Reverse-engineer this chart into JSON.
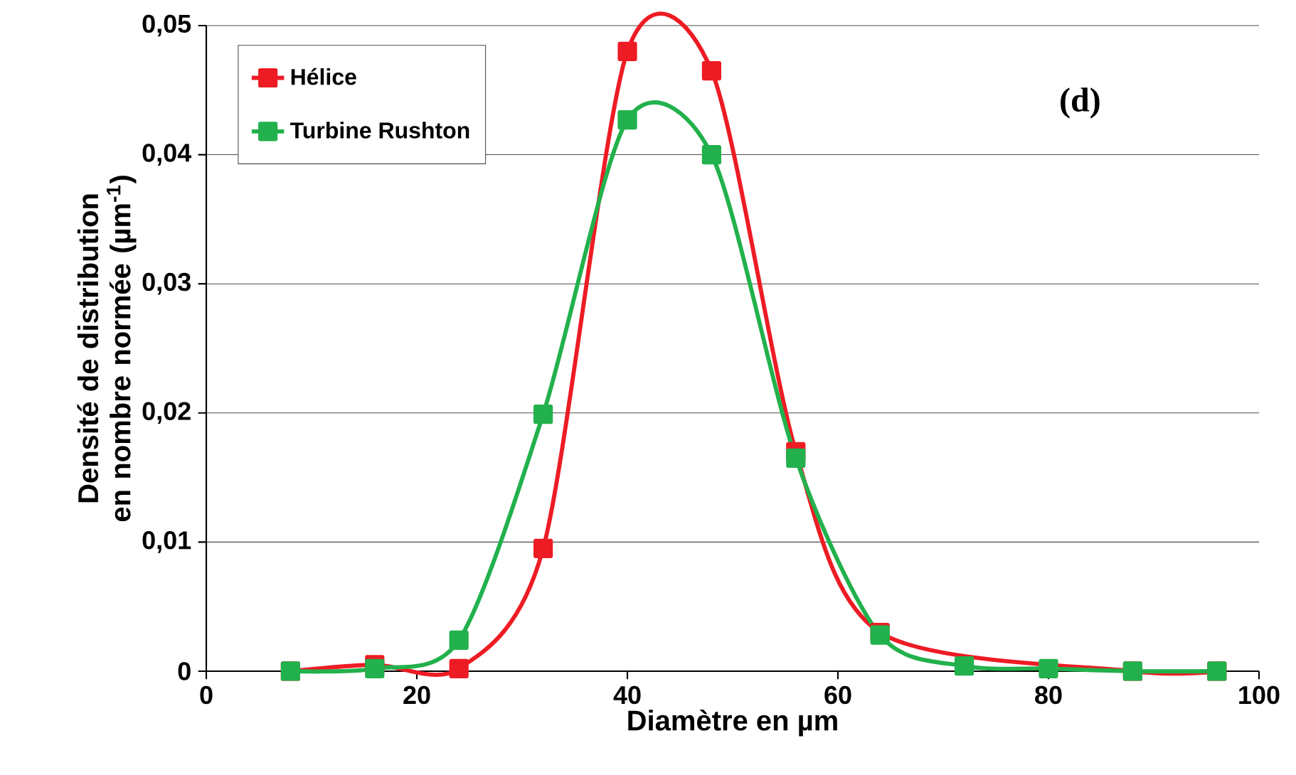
{
  "chart_data": {
    "type": "line",
    "xlabel": "Diamètre en µm",
    "ylabel": "Densité de distribution en nombre normée (µm$^{-1}$)",
    "x": [
      8,
      16,
      24,
      32,
      40,
      48,
      56,
      64,
      72,
      80,
      88,
      96
    ],
    "series": [
      {
        "name": "Hélice",
        "color": "#ed1c24",
        "values": [
          0,
          0.0005,
          0.0002,
          0.0095,
          0.048,
          0.0465,
          0.017,
          0.003,
          null,
          null,
          0,
          0
        ]
      },
      {
        "name": "Turbine Rushton",
        "color": "#22b14c",
        "values": [
          0,
          0.0002,
          0.0024,
          0.0199,
          0.0427,
          0.04,
          0.0165,
          0.0028,
          0.0004,
          0.0002,
          0,
          0
        ]
      }
    ],
    "xlim": [
      0,
      100
    ],
    "xticks": [
      0,
      20,
      40,
      60,
      80,
      100
    ],
    "ylim": [
      0,
      0.05
    ],
    "yticks": [
      {
        "value": 0,
        "label": "0"
      },
      {
        "value": 0.01,
        "label": "0,01"
      },
      {
        "value": 0.02,
        "label": "0,02"
      },
      {
        "value": 0.03,
        "label": "0,03"
      },
      {
        "value": 0.04,
        "label": "0,04"
      },
      {
        "value": 0.05,
        "label": "0,05"
      }
    ],
    "grid": "y",
    "legend": "top left",
    "marker": "square",
    "line_style": "solid",
    "annotations": [
      "(d)"
    ]
  }
}
